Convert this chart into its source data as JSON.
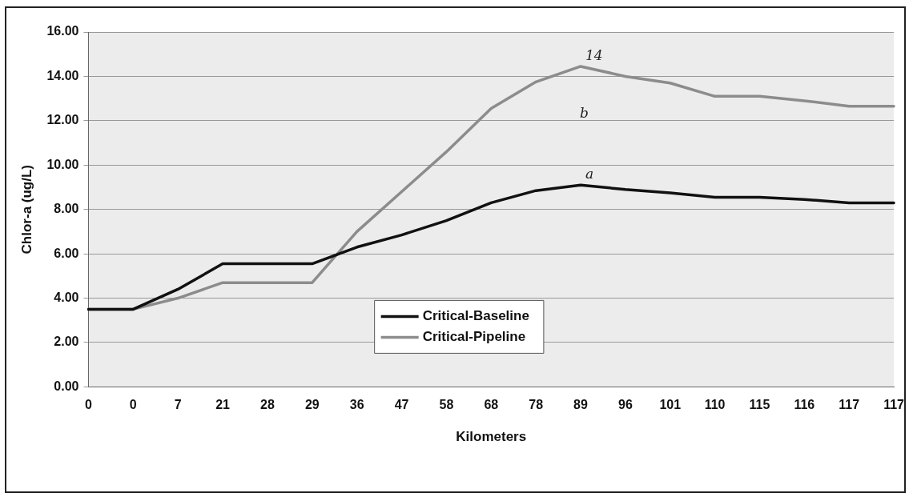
{
  "chart_data": {
    "type": "line",
    "xlabel": "Kilometers",
    "ylabel": "Chlor-a (ug/L)",
    "categories": [
      "0",
      "0",
      "7",
      "21",
      "28",
      "29",
      "36",
      "47",
      "58",
      "68",
      "78",
      "89",
      "96",
      "101",
      "110",
      "115",
      "116",
      "117",
      "117"
    ],
    "series": [
      {
        "name": "Critical-Baseline",
        "color": "#111111",
        "values": [
          3.5,
          3.5,
          4.4,
          5.55,
          5.55,
          5.55,
          6.3,
          6.85,
          7.5,
          8.3,
          8.85,
          9.1,
          8.9,
          8.75,
          8.55,
          8.55,
          8.45,
          8.3,
          8.3
        ]
      },
      {
        "name": "Critical-Pipeline",
        "color": "#8c8c8c",
        "values": [
          3.5,
          3.5,
          4.0,
          4.7,
          4.7,
          4.7,
          7.0,
          8.8,
          10.6,
          12.55,
          13.75,
          14.45,
          14.0,
          13.7,
          13.1,
          13.1,
          12.9,
          12.65,
          12.65
        ]
      }
    ],
    "ylim": [
      0,
      16
    ],
    "yticks": [
      {
        "value": 0,
        "label": "0.00"
      },
      {
        "value": 2,
        "label": "2.00"
      },
      {
        "value": 4,
        "label": "4.00"
      },
      {
        "value": 6,
        "label": "6.00"
      },
      {
        "value": 8,
        "label": "8.00"
      },
      {
        "value": 10,
        "label": "10.00"
      },
      {
        "value": 12,
        "label": "12.00"
      },
      {
        "value": 14,
        "label": "14.00"
      },
      {
        "value": 16,
        "label": "16.00"
      }
    ],
    "grid": "y",
    "legend": "bottom",
    "marker": "none",
    "line_style": "solid",
    "annotations": [
      {
        "text": "14",
        "x": "89",
        "y": 14.45
      },
      "b",
      {
        "text": "a",
        "x": "89",
        "y": 9.1
      }
    ]
  }
}
